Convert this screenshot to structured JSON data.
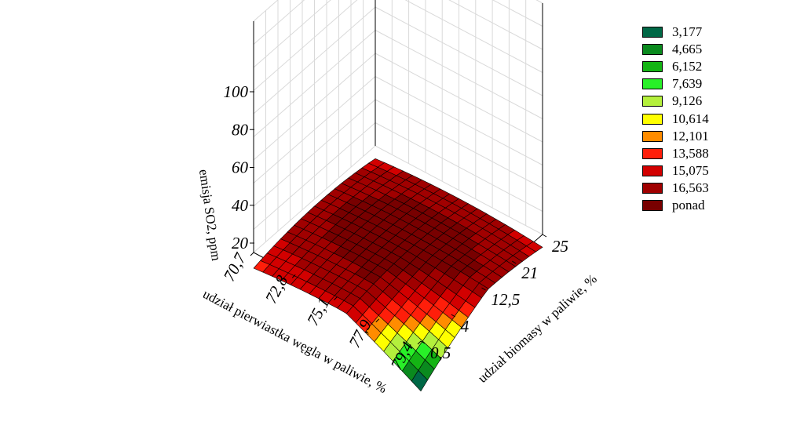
{
  "chart_data": {
    "type": "surface3d",
    "zlabel": "emisja SO2, ppm",
    "xlabel": "udział pierwiastka węgla w paliwie, %",
    "ylabel": "udział biomasy w paliwie, %",
    "z_ticks": [
      "20",
      "40",
      "60",
      "80",
      "100"
    ],
    "z_range": [
      20,
      100
    ],
    "x_ticks": [
      "70,7",
      "72,8",
      "75,1",
      "77,9",
      "79,4"
    ],
    "y_ticks": [
      "0,5",
      "4",
      "12,5",
      "21",
      "25"
    ],
    "grid": true,
    "legend_position": "right",
    "legend": [
      {
        "label": "3,177",
        "color": "#006846"
      },
      {
        "label": "4,665",
        "color": "#0a8a1e"
      },
      {
        "label": "6,152",
        "color": "#14b414"
      },
      {
        "label": "7,639",
        "color": "#28f028"
      },
      {
        "label": "9,126",
        "color": "#b4f03c"
      },
      {
        "label": "10,614",
        "color": "#ffff00"
      },
      {
        "label": "12,101",
        "color": "#ff8c00"
      },
      {
        "label": "13,588",
        "color": "#ff1e0a"
      },
      {
        "label": "15,075",
        "color": "#d20000"
      },
      {
        "label": "16,563",
        "color": "#a00000"
      },
      {
        "label": "ponad",
        "color": "#780000"
      }
    ]
  }
}
